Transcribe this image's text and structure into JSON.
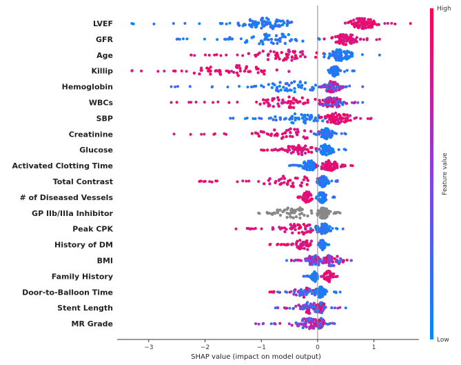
{
  "chart_data": {
    "type": "scatter",
    "subtype": "shap-beeswarm",
    "xlabel": "SHAP value (impact on model output)",
    "xlim": [
      -3.5,
      1.8
    ],
    "xticks": [
      -3,
      -2,
      -1,
      0,
      1
    ],
    "xtick_labels": [
      "−3",
      "−2",
      "−1",
      "0",
      "1"
    ],
    "colorbar": {
      "label": "Feature value",
      "high": "High",
      "low": "Low",
      "high_color": "#ff0052",
      "low_color": "#008bfb"
    },
    "neutral_color": "#888888",
    "features": [
      {
        "name": "LVEF",
        "neg_min": -3.3,
        "pos_max": 1.65,
        "clusters": [
          {
            "center": -0.9,
            "spread": 0.55,
            "count": 70,
            "color": "low"
          },
          {
            "center": 0.8,
            "spread": 0.3,
            "count": 75,
            "color": "high"
          }
        ]
      },
      {
        "name": "GFR",
        "neg_min": -2.5,
        "pos_max": 1.1,
        "clusters": [
          {
            "center": -0.8,
            "spread": 0.8,
            "count": 45,
            "color": "low"
          },
          {
            "center": 0.5,
            "spread": 0.25,
            "count": 80,
            "color": "high"
          }
        ]
      },
      {
        "name": "Age",
        "neg_min": -2.25,
        "pos_max": 1.1,
        "clusters": [
          {
            "center": -0.6,
            "spread": 0.7,
            "count": 45,
            "color": "high"
          },
          {
            "center": 0.4,
            "spread": 0.3,
            "count": 70,
            "color": "low"
          }
        ]
      },
      {
        "name": "Killip",
        "neg_min": -3.3,
        "pos_max": 0.65,
        "clusters": [
          {
            "center": -1.5,
            "spread": 0.9,
            "count": 45,
            "color": "high"
          },
          {
            "center": 0.3,
            "spread": 0.1,
            "count": 45,
            "color": "low"
          }
        ]
      },
      {
        "name": "Hemoglobin",
        "neg_min": -2.6,
        "pos_max": 0.8,
        "clusters": [
          {
            "center": -0.5,
            "spread": 0.7,
            "count": 45,
            "color": "low"
          },
          {
            "center": 0.25,
            "spread": 0.2,
            "count": 75,
            "color": "mix"
          }
        ]
      },
      {
        "name": "WBCs",
        "neg_min": -2.6,
        "pos_max": 0.8,
        "clusters": [
          {
            "center": -0.5,
            "spread": 0.7,
            "count": 45,
            "color": "high"
          },
          {
            "center": 0.25,
            "spread": 0.25,
            "count": 75,
            "color": "mix"
          }
        ]
      },
      {
        "name": "SBP",
        "neg_min": -1.55,
        "pos_max": 0.95,
        "clusters": [
          {
            "center": -0.3,
            "spread": 0.5,
            "count": 45,
            "color": "low"
          },
          {
            "center": 0.35,
            "spread": 0.3,
            "count": 70,
            "color": "high"
          }
        ]
      },
      {
        "name": "Creatinine",
        "neg_min": -2.55,
        "pos_max": 0.5,
        "clusters": [
          {
            "center": -0.5,
            "spread": 0.7,
            "count": 40,
            "color": "high"
          },
          {
            "center": 0.15,
            "spread": 0.15,
            "count": 60,
            "color": "low"
          }
        ]
      },
      {
        "name": "Glucose",
        "neg_min": -1.0,
        "pos_max": 0.5,
        "clusters": [
          {
            "center": -0.3,
            "spread": 0.35,
            "count": 45,
            "color": "high"
          },
          {
            "center": 0.15,
            "spread": 0.15,
            "count": 60,
            "color": "low"
          }
        ]
      },
      {
        "name": "Activated Clotting Time",
        "neg_min": -0.5,
        "pos_max": 0.62,
        "clusters": [
          {
            "center": -0.15,
            "spread": 0.15,
            "count": 45,
            "color": "low"
          },
          {
            "center": 0.2,
            "spread": 0.2,
            "count": 55,
            "color": "high"
          }
        ]
      },
      {
        "name": "Total Contrast",
        "neg_min": -2.1,
        "pos_max": 0.35,
        "clusters": [
          {
            "center": -0.5,
            "spread": 0.7,
            "count": 35,
            "color": "high"
          },
          {
            "center": 0.1,
            "spread": 0.1,
            "count": 60,
            "color": "low"
          }
        ]
      },
      {
        "name": "# of Diseased Vessels",
        "neg_min": -0.35,
        "pos_max": 0.3,
        "clusters": [
          {
            "center": -0.18,
            "spread": 0.1,
            "count": 45,
            "color": "high"
          },
          {
            "center": 0.08,
            "spread": 0.1,
            "count": 45,
            "color": "low"
          }
        ]
      },
      {
        "name": "GP IIb/IIIa Inhibitor",
        "neg_min": -1.05,
        "pos_max": 0.4,
        "clusters": [
          {
            "center": -0.4,
            "spread": 0.5,
            "count": 40,
            "color": "gray"
          },
          {
            "center": 0.1,
            "spread": 0.12,
            "count": 60,
            "color": "gray"
          }
        ]
      },
      {
        "name": "Peak CPK",
        "neg_min": -1.45,
        "pos_max": 0.45,
        "clusters": [
          {
            "center": -0.3,
            "spread": 0.45,
            "count": 40,
            "color": "high"
          },
          {
            "center": 0.1,
            "spread": 0.15,
            "count": 55,
            "color": "low"
          }
        ]
      },
      {
        "name": "History of DM",
        "neg_min": -0.85,
        "pos_max": 0.2,
        "clusters": [
          {
            "center": -0.25,
            "spread": 0.25,
            "count": 35,
            "color": "high"
          },
          {
            "center": 0.08,
            "spread": 0.06,
            "count": 45,
            "color": "low"
          }
        ]
      },
      {
        "name": "BMI",
        "neg_min": -0.55,
        "pos_max": 0.6,
        "clusters": [
          {
            "center": -0.05,
            "spread": 0.2,
            "count": 60,
            "color": "mix"
          },
          {
            "center": 0.25,
            "spread": 0.2,
            "count": 40,
            "color": "mix"
          }
        ]
      },
      {
        "name": "Family History",
        "neg_min": -0.25,
        "pos_max": 0.35,
        "clusters": [
          {
            "center": -0.05,
            "spread": 0.07,
            "count": 40,
            "color": "low"
          },
          {
            "center": 0.2,
            "spread": 0.1,
            "count": 35,
            "color": "high"
          }
        ]
      },
      {
        "name": "Door-to-Balloon Time",
        "neg_min": -0.85,
        "pos_max": 0.4,
        "clusters": [
          {
            "center": -0.2,
            "spread": 0.25,
            "count": 40,
            "color": "mix"
          },
          {
            "center": 0.05,
            "spread": 0.1,
            "count": 50,
            "color": "low"
          }
        ]
      },
      {
        "name": "Stent Length",
        "neg_min": -0.75,
        "pos_max": 0.5,
        "clusters": [
          {
            "center": -0.15,
            "spread": 0.25,
            "count": 45,
            "color": "mix"
          },
          {
            "center": 0.05,
            "spread": 0.12,
            "count": 50,
            "color": "mix"
          }
        ]
      },
      {
        "name": "MR Grade",
        "neg_min": -1.1,
        "pos_max": 0.3,
        "clusters": [
          {
            "center": -0.15,
            "spread": 0.3,
            "count": 45,
            "color": "mix"
          },
          {
            "center": 0.05,
            "spread": 0.08,
            "count": 50,
            "color": "mix"
          }
        ]
      }
    ]
  }
}
